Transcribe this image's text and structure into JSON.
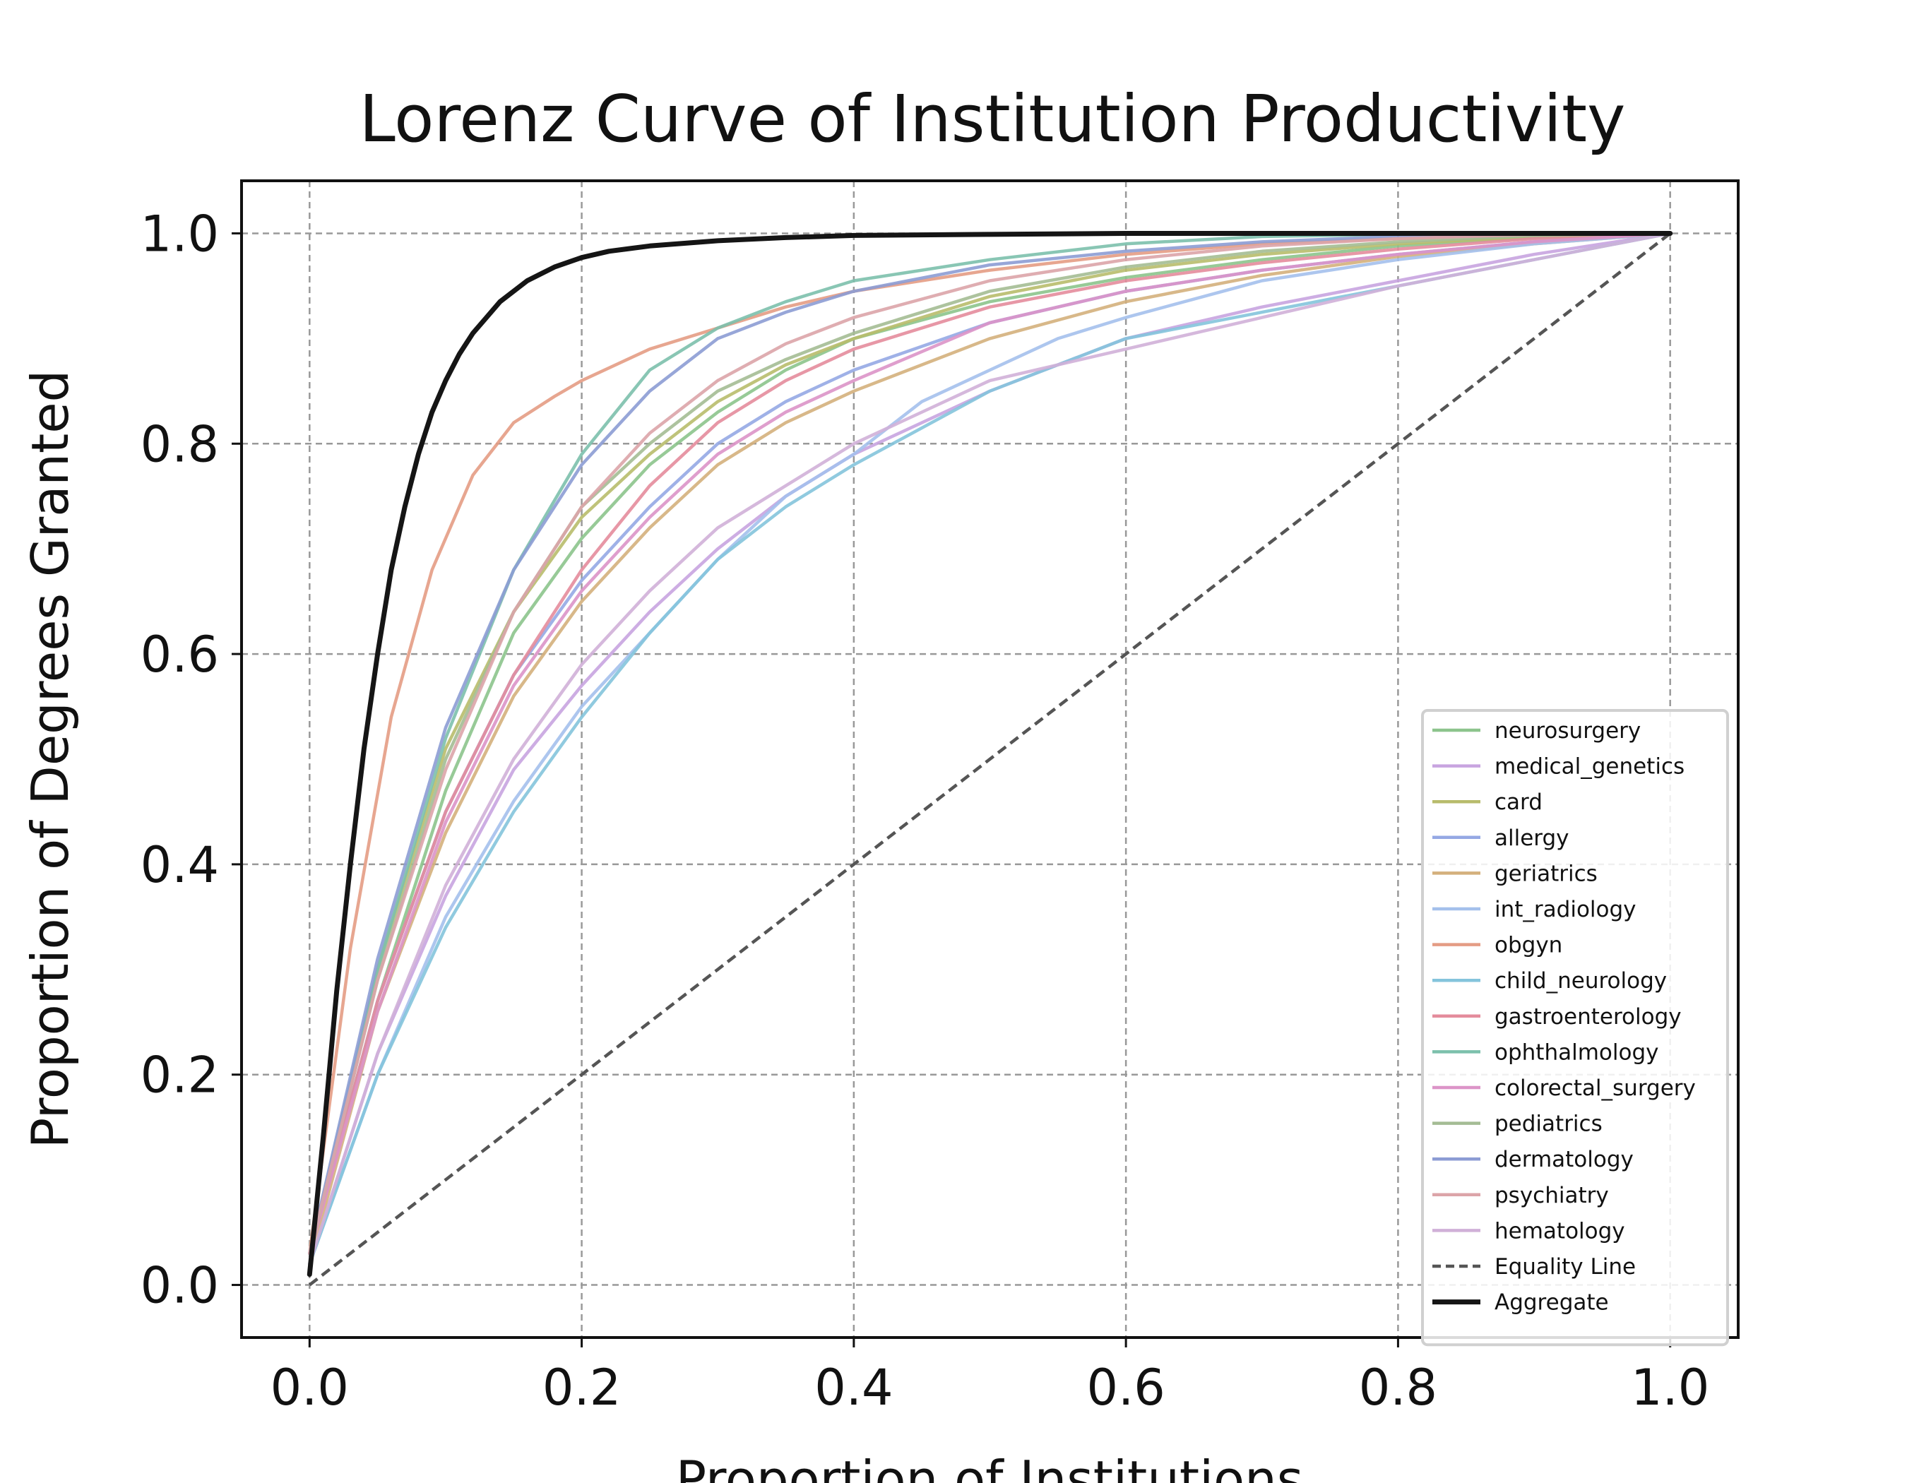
{
  "chart_data": {
    "type": "line",
    "title": "Lorenz Curve of Institution Productivity",
    "xlabel": "Proportion of Institutions",
    "ylabel": "Proportion of Degrees Granted",
    "xlim": [
      -0.05,
      1.05
    ],
    "ylim": [
      -0.05,
      1.05
    ],
    "xticks": [
      "0.0",
      "0.2",
      "0.4",
      "0.6",
      "0.8",
      "1.0"
    ],
    "yticks": [
      "0.0",
      "0.2",
      "0.4",
      "0.6",
      "0.8",
      "1.0"
    ],
    "grid": true,
    "legend_position": "lower-right",
    "series": [
      {
        "name": "neurosurgery",
        "color": "#8cc48c",
        "x": [
          0,
          0.05,
          0.1,
          0.15,
          0.2,
          0.25,
          0.3,
          0.35,
          0.4,
          0.5,
          0.6,
          0.7,
          0.8,
          0.9,
          1.0
        ],
        "y": [
          0.03,
          0.27,
          0.47,
          0.62,
          0.71,
          0.78,
          0.83,
          0.87,
          0.9,
          0.935,
          0.958,
          0.975,
          0.988,
          0.996,
          1.0
        ]
      },
      {
        "name": "medical_genetics",
        "color": "#c8a4e0",
        "x": [
          0,
          0.05,
          0.1,
          0.15,
          0.2,
          0.25,
          0.3,
          0.35,
          0.4,
          0.5,
          0.6,
          0.7,
          0.8,
          0.9,
          1.0
        ],
        "y": [
          0.02,
          0.22,
          0.37,
          0.49,
          0.57,
          0.64,
          0.7,
          0.75,
          0.79,
          0.85,
          0.9,
          0.93,
          0.955,
          0.98,
          1.0
        ]
      },
      {
        "name": "card",
        "color": "#b8bc6c",
        "x": [
          0,
          0.05,
          0.1,
          0.15,
          0.2,
          0.25,
          0.3,
          0.35,
          0.4,
          0.5,
          0.6,
          0.7,
          0.8,
          0.9,
          1.0
        ],
        "y": [
          0.03,
          0.3,
          0.51,
          0.64,
          0.73,
          0.79,
          0.84,
          0.875,
          0.9,
          0.94,
          0.965,
          0.98,
          0.99,
          0.997,
          1.0
        ]
      },
      {
        "name": "allergy",
        "color": "#95a8e4",
        "x": [
          0,
          0.05,
          0.1,
          0.15,
          0.2,
          0.25,
          0.3,
          0.35,
          0.4,
          0.5,
          0.6,
          0.7,
          0.8,
          0.9,
          1.0
        ],
        "y": [
          0.03,
          0.27,
          0.45,
          0.58,
          0.67,
          0.74,
          0.8,
          0.84,
          0.87,
          0.915,
          0.945,
          0.965,
          0.98,
          0.992,
          1.0
        ]
      },
      {
        "name": "geriatrics",
        "color": "#d4b07c",
        "x": [
          0,
          0.05,
          0.1,
          0.15,
          0.2,
          0.25,
          0.3,
          0.35,
          0.4,
          0.5,
          0.6,
          0.7,
          0.8,
          0.9,
          1.0
        ],
        "y": [
          0.02,
          0.26,
          0.43,
          0.56,
          0.65,
          0.72,
          0.78,
          0.82,
          0.85,
          0.9,
          0.935,
          0.96,
          0.978,
          0.99,
          1.0
        ]
      },
      {
        "name": "int_radiology",
        "color": "#a4c0ec",
        "x": [
          0,
          0.05,
          0.1,
          0.15,
          0.2,
          0.25,
          0.3,
          0.35,
          0.4,
          0.45,
          0.5,
          0.55,
          0.6,
          0.7,
          0.8,
          0.9,
          1.0
        ],
        "y": [
          0.02,
          0.2,
          0.35,
          0.46,
          0.55,
          0.62,
          0.69,
          0.75,
          0.79,
          0.84,
          0.87,
          0.9,
          0.92,
          0.955,
          0.975,
          0.99,
          1.0
        ]
      },
      {
        "name": "obgyn",
        "color": "#e49c84",
        "x": [
          0,
          0.03,
          0.06,
          0.09,
          0.12,
          0.15,
          0.18,
          0.2,
          0.25,
          0.3,
          0.35,
          0.4,
          0.5,
          0.6,
          0.7,
          0.8,
          0.9,
          1.0
        ],
        "y": [
          0.03,
          0.32,
          0.54,
          0.68,
          0.77,
          0.82,
          0.845,
          0.86,
          0.89,
          0.91,
          0.93,
          0.945,
          0.965,
          0.98,
          0.99,
          0.995,
          0.999,
          1.0
        ]
      },
      {
        "name": "child_neurology",
        "color": "#84c4dc",
        "x": [
          0,
          0.05,
          0.1,
          0.15,
          0.2,
          0.25,
          0.3,
          0.35,
          0.4,
          0.5,
          0.6,
          0.7,
          0.8,
          0.9,
          1.0
        ],
        "y": [
          0.02,
          0.2,
          0.34,
          0.45,
          0.54,
          0.62,
          0.69,
          0.74,
          0.78,
          0.85,
          0.9,
          0.925,
          0.95,
          0.975,
          1.0
        ]
      },
      {
        "name": "gastroenterology",
        "color": "#e48c9c",
        "x": [
          0,
          0.05,
          0.1,
          0.15,
          0.2,
          0.25,
          0.3,
          0.35,
          0.4,
          0.5,
          0.6,
          0.7,
          0.8,
          0.9,
          1.0
        ],
        "y": [
          0.03,
          0.27,
          0.45,
          0.58,
          0.68,
          0.76,
          0.82,
          0.86,
          0.89,
          0.93,
          0.955,
          0.972,
          0.985,
          0.995,
          1.0
        ]
      },
      {
        "name": "ophthalmology",
        "color": "#7cc0ac",
        "x": [
          0,
          0.05,
          0.1,
          0.15,
          0.2,
          0.25,
          0.3,
          0.35,
          0.4,
          0.5,
          0.6,
          0.7,
          0.8,
          0.9,
          1.0
        ],
        "y": [
          0.03,
          0.3,
          0.52,
          0.68,
          0.79,
          0.87,
          0.91,
          0.935,
          0.955,
          0.975,
          0.99,
          0.997,
          0.999,
          1.0,
          1.0
        ]
      },
      {
        "name": "colorectal_surgery",
        "color": "#dc94c8",
        "x": [
          0,
          0.05,
          0.1,
          0.15,
          0.2,
          0.25,
          0.3,
          0.35,
          0.4,
          0.5,
          0.6,
          0.7,
          0.8,
          0.9,
          1.0
        ],
        "y": [
          0.03,
          0.26,
          0.44,
          0.57,
          0.66,
          0.73,
          0.79,
          0.83,
          0.86,
          0.915,
          0.945,
          0.965,
          0.98,
          0.992,
          1.0
        ]
      },
      {
        "name": "pediatrics",
        "color": "#a4bc94",
        "x": [
          0,
          0.05,
          0.1,
          0.15,
          0.2,
          0.25,
          0.3,
          0.35,
          0.4,
          0.5,
          0.6,
          0.7,
          0.8,
          0.9,
          1.0
        ],
        "y": [
          0.03,
          0.29,
          0.5,
          0.64,
          0.74,
          0.8,
          0.85,
          0.88,
          0.905,
          0.945,
          0.968,
          0.983,
          0.992,
          0.998,
          1.0
        ]
      },
      {
        "name": "dermatology",
        "color": "#8c9cd4",
        "x": [
          0,
          0.05,
          0.1,
          0.15,
          0.2,
          0.25,
          0.3,
          0.35,
          0.4,
          0.5,
          0.6,
          0.7,
          0.8,
          0.9,
          1.0
        ],
        "y": [
          0.03,
          0.31,
          0.53,
          0.68,
          0.78,
          0.85,
          0.9,
          0.925,
          0.945,
          0.97,
          0.983,
          0.992,
          0.997,
          0.999,
          1.0
        ]
      },
      {
        "name": "psychiatry",
        "color": "#dca4a8",
        "x": [
          0,
          0.05,
          0.1,
          0.15,
          0.2,
          0.25,
          0.3,
          0.35,
          0.4,
          0.5,
          0.6,
          0.7,
          0.8,
          0.9,
          1.0
        ],
        "y": [
          0.03,
          0.29,
          0.49,
          0.64,
          0.74,
          0.81,
          0.86,
          0.895,
          0.92,
          0.955,
          0.975,
          0.988,
          0.995,
          0.999,
          1.0
        ]
      },
      {
        "name": "hematology",
        "color": "#d0b0d8",
        "x": [
          0,
          0.05,
          0.1,
          0.15,
          0.2,
          0.25,
          0.3,
          0.35,
          0.4,
          0.5,
          0.6,
          0.7,
          0.8,
          0.9,
          1.0
        ],
        "y": [
          0.02,
          0.22,
          0.38,
          0.5,
          0.59,
          0.66,
          0.72,
          0.76,
          0.8,
          0.86,
          0.89,
          0.92,
          0.95,
          0.975,
          1.0
        ]
      },
      {
        "name": "Equality Line",
        "color": "#555555",
        "dashed": true,
        "x": [
          0,
          1
        ],
        "y": [
          0,
          1
        ]
      },
      {
        "name": "Aggregate",
        "color": "#151515",
        "bold": true,
        "x": [
          0,
          0.01,
          0.02,
          0.03,
          0.04,
          0.05,
          0.06,
          0.07,
          0.08,
          0.09,
          0.1,
          0.11,
          0.12,
          0.13,
          0.14,
          0.16,
          0.18,
          0.2,
          0.22,
          0.25,
          0.3,
          0.35,
          0.4,
          0.5,
          0.6,
          0.7,
          0.8,
          0.9,
          1.0
        ],
        "y": [
          0.01,
          0.14,
          0.28,
          0.4,
          0.51,
          0.6,
          0.68,
          0.74,
          0.79,
          0.83,
          0.86,
          0.885,
          0.905,
          0.92,
          0.935,
          0.955,
          0.968,
          0.977,
          0.983,
          0.988,
          0.993,
          0.996,
          0.998,
          0.999,
          1.0,
          1.0,
          1.0,
          1.0,
          1.0
        ]
      }
    ]
  }
}
